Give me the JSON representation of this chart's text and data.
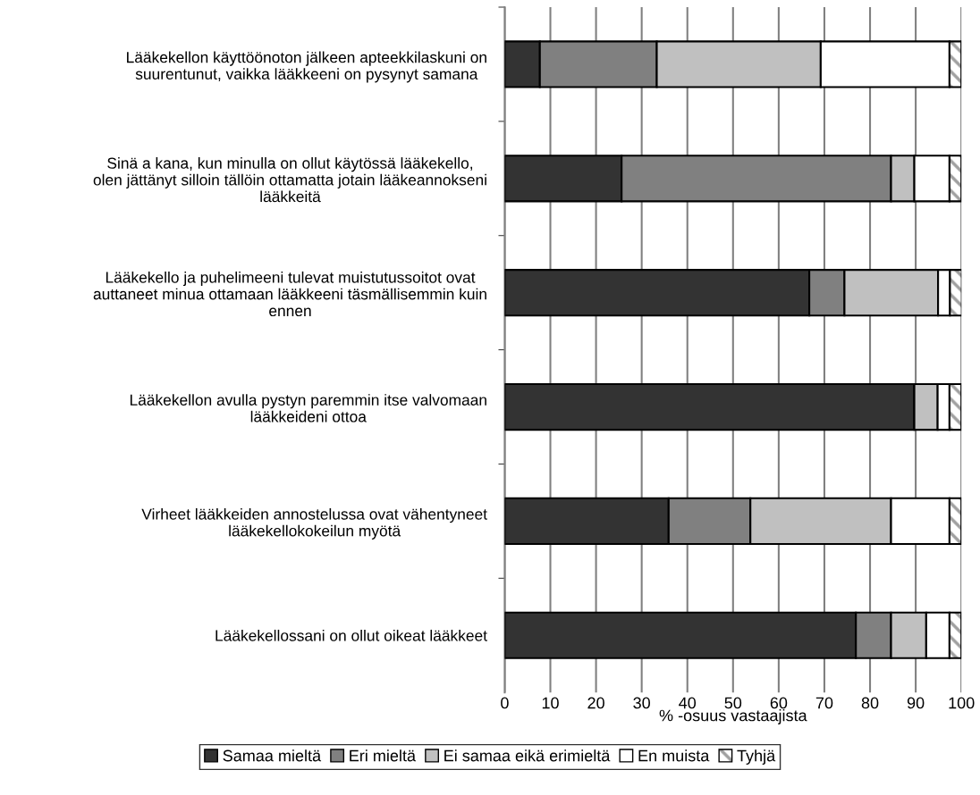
{
  "chart_data": {
    "type": "bar",
    "orientation": "horizontal",
    "stacked": true,
    "categories": [
      "Lääkekellon käyttöönoton jälkeen apteekkilaskuni on\nsuurentunut, vaikka lääkkeeni on pysynyt samana",
      "Sinä a kana, kun minulla on ollut käytössä lääkekello,\nolen jättänyt silloin tällöin ottamatta jotain lääkeannokseni\nlääkkeitä",
      "Lääkekello ja puhelimeeni tulevat muistutussoitot ovat\nauttaneet minua ottamaan lääkkeeni täsmällisemmin kuin\nennen",
      "Lääkekellon avulla pystyn paremmin itse valvomaan\nlääkkeideni ottoa",
      "Virheet lääkkeiden annostelussa ovat vähentyneet\nlääkekellokokeilun myötä",
      "Lääkekellossani on ollut oikeat lääkkeet"
    ],
    "series": [
      {
        "name": "Samaa mieltä",
        "color": "#333333",
        "values": [
          7.7,
          25.6,
          66.7,
          89.7,
          35.9,
          76.9
        ]
      },
      {
        "name": "Eri mieltä",
        "color": "#808080",
        "values": [
          25.6,
          59.0,
          7.7,
          0,
          17.9,
          7.7
        ]
      },
      {
        "name": "Ei samaa eikä erimieltä",
        "color": "#c0c0c0",
        "values": [
          35.9,
          5.1,
          20.5,
          5.1,
          30.8,
          7.7
        ]
      },
      {
        "name": "En muista",
        "color": "#ffffff",
        "values": [
          28.2,
          7.7,
          2.6,
          2.6,
          12.8,
          5.1
        ]
      },
      {
        "name": "Tyhjä",
        "color": "#a0a0a0",
        "values": [
          2.6,
          2.6,
          2.6,
          2.6,
          2.6,
          2.6
        ]
      }
    ],
    "xlim": [
      0,
      100
    ],
    "xticks": [
      0,
      10,
      20,
      30,
      40,
      50,
      60,
      70,
      80,
      90,
      100
    ],
    "xlabel": "% -osuus vastaajista",
    "grid": "x",
    "legend": "bottom"
  }
}
